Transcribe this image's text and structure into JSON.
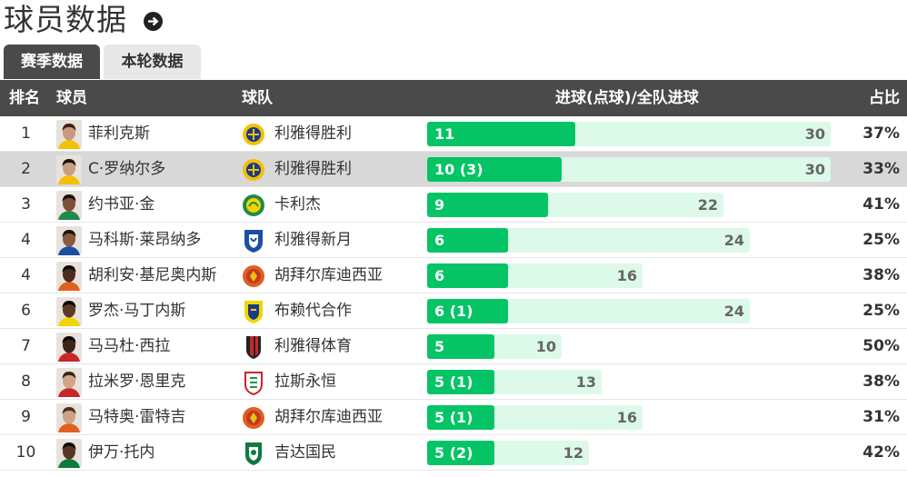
{
  "page": {
    "title": "球员数据"
  },
  "tabs": [
    {
      "label": "赛季数据",
      "active": true
    },
    {
      "label": "本轮数据",
      "active": false
    }
  ],
  "table": {
    "headers": {
      "rank": "排名",
      "player": "球员",
      "team": "球队",
      "goals": "进球(点球)/全队进球",
      "share": "占比"
    },
    "rows": [
      {
        "rank": "1",
        "player": "菲利克斯",
        "team": "利雅得胜利",
        "goals": 11,
        "goals_label": "11",
        "team_goals": 30,
        "share": "37%",
        "alt": false,
        "skin": "#c79a7f",
        "hair": "#3a2416",
        "shirt": "#f2c200",
        "logo": "nassr"
      },
      {
        "rank": "2",
        "player": "C·罗纳尔多",
        "team": "利雅得胜利",
        "goals": 10,
        "goals_label": "10 (3)",
        "team_goals": 30,
        "share": "33%",
        "alt": true,
        "skin": "#c9a07f",
        "hair": "#1d130d",
        "shirt": "#f2c200",
        "logo": "nassr"
      },
      {
        "rank": "3",
        "player": "约书亚·金",
        "team": "卡利杰",
        "goals": 9,
        "goals_label": "9",
        "team_goals": 22,
        "share": "41%",
        "alt": false,
        "skin": "#7d4f35",
        "hair": "#1a100b",
        "shirt": "#1f8a4c",
        "logo": "khaleej"
      },
      {
        "rank": "4",
        "player": "马科斯·莱昂纳多",
        "team": "利雅得新月",
        "goals": 6,
        "goals_label": "6",
        "team_goals": 24,
        "share": "25%",
        "alt": false,
        "skin": "#8a5a3c",
        "hair": "#1b120c",
        "shirt": "#1b4fa0",
        "logo": "hilal"
      },
      {
        "rank": "4",
        "player": "胡利安·基尼奥内斯",
        "team": "胡拜尔库迪西亚",
        "goals": 6,
        "goals_label": "6",
        "team_goals": 16,
        "share": "38%",
        "alt": false,
        "skin": "#4a2d1d",
        "hair": "#120b07",
        "shirt": "#e0601f",
        "logo": "qadsiah"
      },
      {
        "rank": "6",
        "player": "罗杰·马丁内斯",
        "team": "布赖代合作",
        "goals": 6,
        "goals_label": "6 (1)",
        "team_goals": 24,
        "share": "25%",
        "alt": false,
        "skin": "#5b3a27",
        "hair": "#0f0a07",
        "shirt": "#f2d400",
        "logo": "taawoun"
      },
      {
        "rank": "7",
        "player": "马马杜·西拉",
        "team": "利雅得体育",
        "goals": 5,
        "goals_label": "5",
        "team_goals": 10,
        "share": "50%",
        "alt": false,
        "skin": "#3d2518",
        "hair": "#0c0805",
        "shirt": "#c62828",
        "logo": "riyadh"
      },
      {
        "rank": "8",
        "player": "拉米罗·恩里克",
        "team": "拉斯永恒",
        "goals": 5,
        "goals_label": "5 (1)",
        "team_goals": 13,
        "share": "38%",
        "alt": false,
        "skin": "#d2a58a",
        "hair": "#3b2619",
        "shirt": "#c62828",
        "logo": "raed"
      },
      {
        "rank": "9",
        "player": "马特奥·雷特吉",
        "team": "胡拜尔库迪西亚",
        "goals": 5,
        "goals_label": "5 (1)",
        "team_goals": 16,
        "share": "31%",
        "alt": false,
        "skin": "#cfa184",
        "hair": "#4a3020",
        "shirt": "#e0601f",
        "logo": "qadsiah"
      },
      {
        "rank": "10",
        "player": "伊万·托内",
        "team": "吉达国民",
        "goals": 5,
        "goals_label": "5 (2)",
        "team_goals": 12,
        "share": "42%",
        "alt": false,
        "skin": "#5a3725",
        "hair": "#120b07",
        "shirt": "#0f7a3e",
        "logo": "ahli"
      }
    ]
  },
  "icons": {
    "title_arrow": "arrow-circle-right-icon"
  },
  "colors": {
    "header_bg": "#4a4a4a",
    "bar_fill": "#05c466",
    "bar_bg": "#dcf9ea",
    "row_highlight": "#d8d8d8"
  }
}
